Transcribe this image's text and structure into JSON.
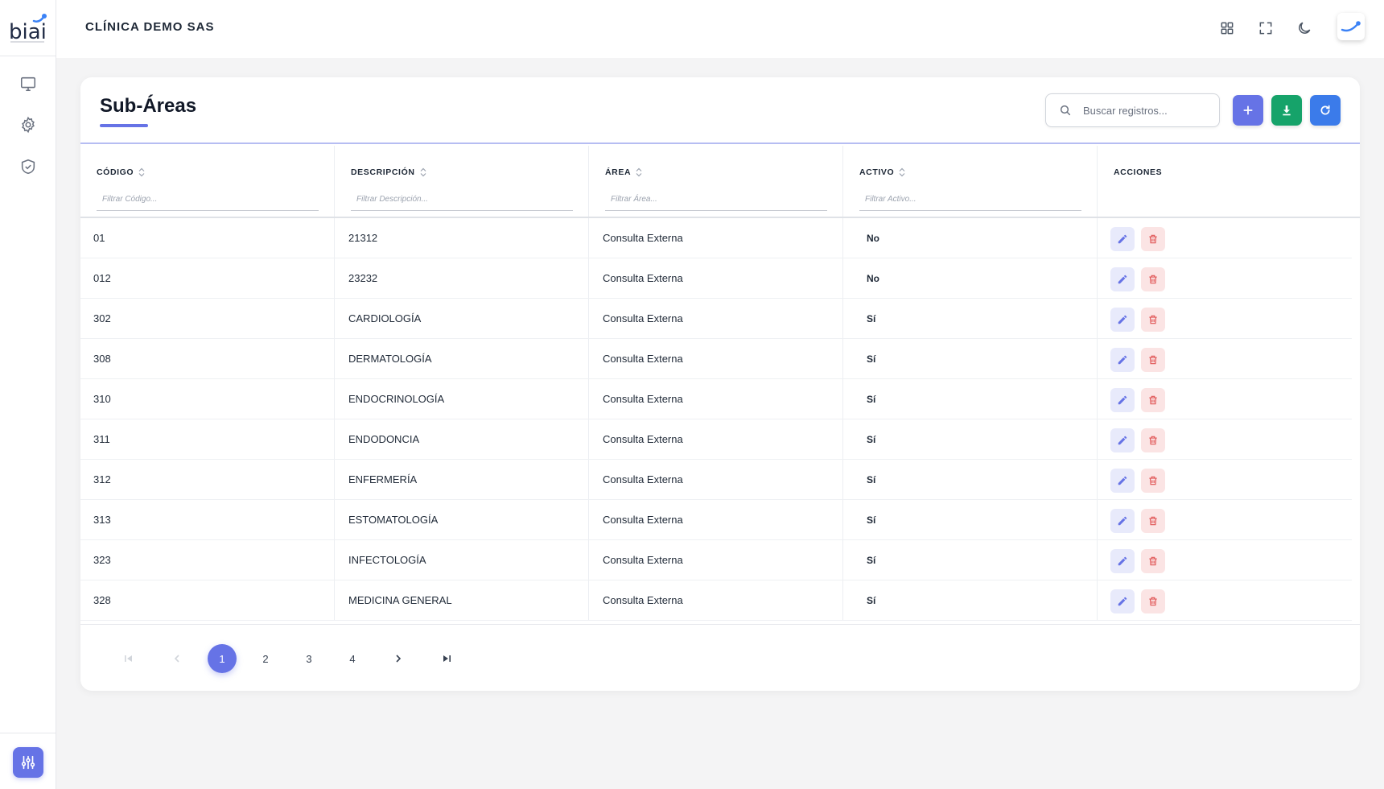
{
  "brand": {
    "logo_text": "biai"
  },
  "sidebar": {
    "items": [
      {
        "icon": "monitor-icon"
      },
      {
        "icon": "gear-icon"
      },
      {
        "icon": "shield-check-icon"
      }
    ],
    "bottom_icon": "sliders-icon"
  },
  "topbar": {
    "company": "CLÍNICA DEMO SAS",
    "icons": [
      "grid-icon",
      "fullscreen-icon",
      "moon-icon",
      "avatar"
    ]
  },
  "page": {
    "title": "Sub-Áreas",
    "search_placeholder": "Buscar registros..."
  },
  "table": {
    "columns": [
      {
        "label": "CÓDIGO",
        "filter": "Filtrar Código...",
        "sortable": true
      },
      {
        "label": "DESCRIPCIÓN",
        "filter": "Filtrar Descripción...",
        "sortable": true
      },
      {
        "label": "ÁREA",
        "filter": "Filtrar Área...",
        "sortable": true
      },
      {
        "label": "ACTIVO",
        "filter": "Filtrar Activo...",
        "sortable": true
      },
      {
        "label": "ACCIONES",
        "filter": "",
        "sortable": false
      }
    ],
    "rows": [
      {
        "codigo": "01",
        "descripcion": "21312",
        "area": "Consulta Externa",
        "activo": "No"
      },
      {
        "codigo": "012",
        "descripcion": "23232",
        "area": "Consulta Externa",
        "activo": "No"
      },
      {
        "codigo": "302",
        "descripcion": "CARDIOLOGÍA",
        "area": "Consulta Externa",
        "activo": "Sí"
      },
      {
        "codigo": "308",
        "descripcion": "DERMATOLOGÍA",
        "area": "Consulta Externa",
        "activo": "Sí"
      },
      {
        "codigo": "310",
        "descripcion": "ENDOCRINOLOGÍA",
        "area": "Consulta Externa",
        "activo": "Sí"
      },
      {
        "codigo": "311",
        "descripcion": "ENDODONCIA",
        "area": "Consulta Externa",
        "activo": "Sí"
      },
      {
        "codigo": "312",
        "descripcion": "ENFERMERÍA",
        "area": "Consulta Externa",
        "activo": "Sí"
      },
      {
        "codigo": "313",
        "descripcion": "ESTOMATOLOGÍA",
        "area": "Consulta Externa",
        "activo": "Sí"
      },
      {
        "codigo": "323",
        "descripcion": "INFECTOLOGÍA",
        "area": "Consulta Externa",
        "activo": "Sí"
      },
      {
        "codigo": "328",
        "descripcion": "MEDICINA GENERAL",
        "area": "Consulta Externa",
        "activo": "Sí"
      }
    ]
  },
  "pagination": {
    "pages": [
      "1",
      "2",
      "3",
      "4"
    ],
    "current": "1"
  },
  "colors": {
    "primary": "#6673e6",
    "success": "#16a36a",
    "info": "#3b7bea",
    "danger": "#e05555"
  }
}
